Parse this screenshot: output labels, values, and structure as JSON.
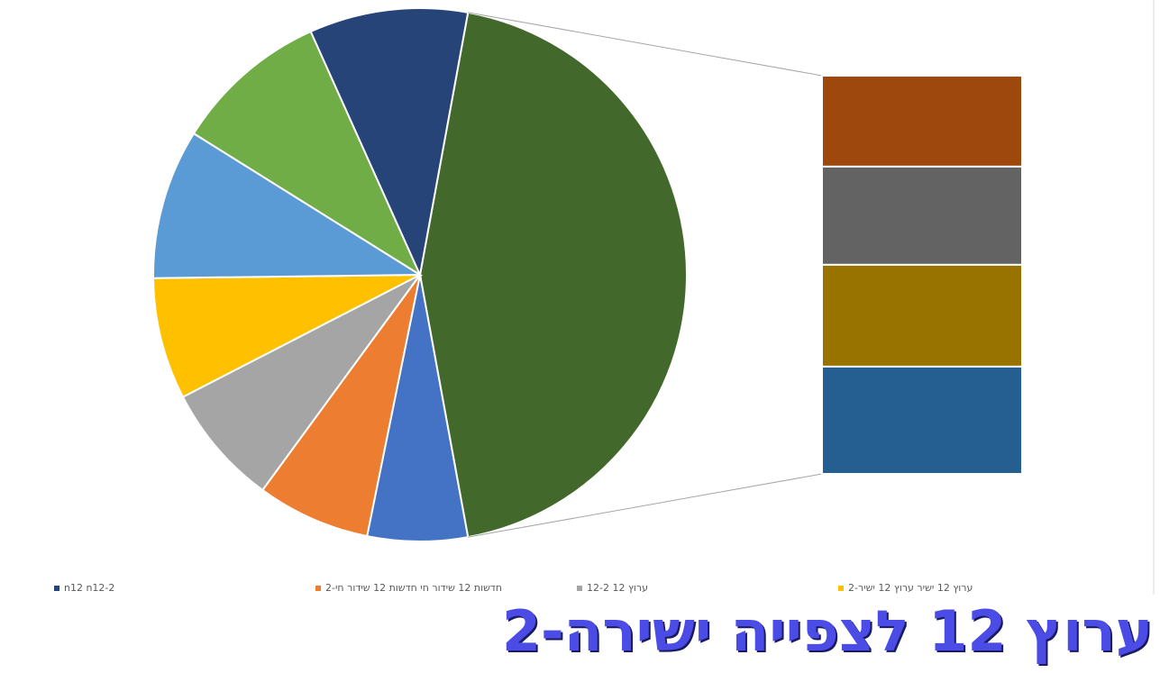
{
  "chart_data": {
    "type": "bar-of-pie",
    "title": "ערוץ 12 לצפייה ישירה-2",
    "slices": [
      {
        "color": "#4472c4",
        "value": 6
      },
      {
        "name": "חדשות 12 שידור חי חדשות 12 שידור חי-2",
        "color": "#ed7d31",
        "value": 6.8
      },
      {
        "name": "ערוץ 12 12-2",
        "color": "#a5a5a5",
        "value": 7.3
      },
      {
        "name": "ערוץ 12 ישיר ערוץ 12 ישיר-2",
        "color": "#ffc000",
        "value": 7.3
      },
      {
        "color": "#5b9bd5",
        "value": 9
      },
      {
        "color": "#70ad47",
        "value": 9.3
      },
      {
        "name": "n12 n12-2",
        "color": "#264478",
        "value": 9.5
      }
    ],
    "other_color": "#43682b",
    "secondary": [
      {
        "color": "#9e480e",
        "value": 10
      },
      {
        "color": "#636363",
        "value": 10.8
      },
      {
        "color": "#997300",
        "value": 11.2
      },
      {
        "color": "#255e91",
        "value": 11.8
      }
    ],
    "legend_order": [
      6,
      1,
      2,
      3
    ]
  }
}
